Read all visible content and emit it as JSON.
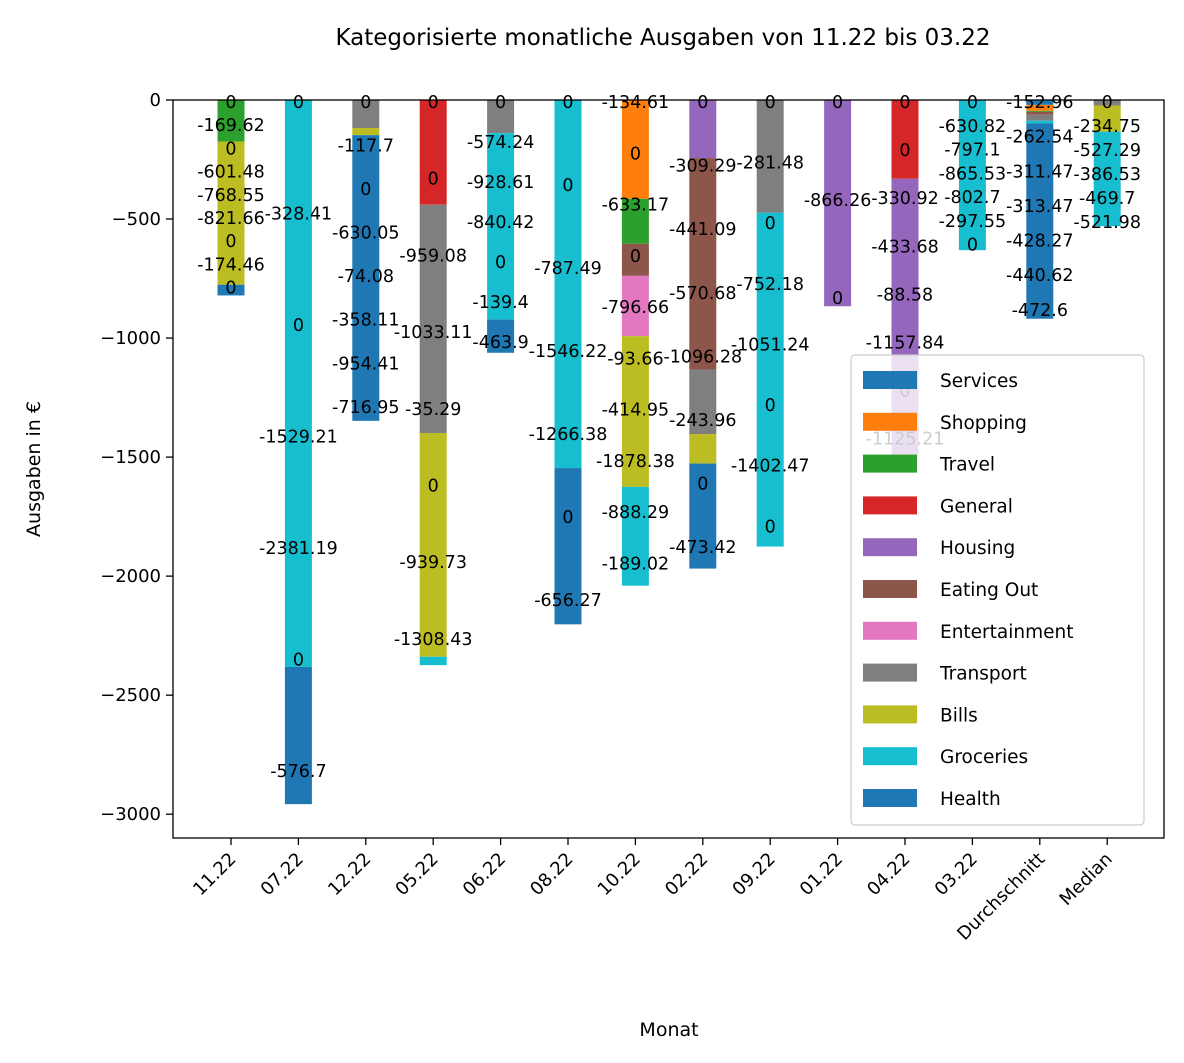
{
  "chart_data": {
    "type": "bar",
    "stacked": true,
    "title": "Kategorisierte monatliche Ausgaben von 11.22 bis 03.22",
    "xlabel": "Monat",
    "ylabel": "Ausgaben in €",
    "ylim": [
      -3100,
      0
    ],
    "yticks": [
      0,
      -500,
      -1000,
      -1500,
      -2000,
      -2500,
      -3000
    ],
    "ytick_labels": [
      "0",
      "−500",
      "−1000",
      "−1500",
      "−2000",
      "−2500",
      "−3000"
    ],
    "grid": false,
    "legend_position": "lower right",
    "categories": [
      "11.22",
      "07.22",
      "12.22",
      "05.22",
      "06.22",
      "08.22",
      "10.22",
      "02.22",
      "09.22",
      "01.22",
      "04.22",
      "03.22",
      "Durchschnitt",
      "Median"
    ],
    "series": [
      {
        "name": "Services",
        "color": "#1f77b4",
        "values": [
          0,
          0,
          0,
          0,
          0,
          0,
          0,
          0,
          0,
          0,
          0,
          0,
          -20.5,
          0
        ]
      },
      {
        "name": "Shopping",
        "color": "#ff7f0e",
        "values": [
          0,
          0,
          0,
          0,
          0,
          0,
          -414.95,
          0,
          0,
          0,
          0,
          0,
          -25.3,
          0
        ]
      },
      {
        "name": "Travel",
        "color": "#2ca02c",
        "values": [
          -174.46,
          0,
          0,
          0,
          0,
          0,
          -189.02,
          0,
          0,
          0,
          0,
          0,
          -4.0,
          0
        ]
      },
      {
        "name": "General",
        "color": "#d62728",
        "values": [
          0,
          0,
          0,
          -439.82,
          0,
          0,
          0,
          0,
          0,
          0,
          -330.92,
          0,
          0,
          0
        ]
      },
      {
        "name": "Housing",
        "color": "#9467bd",
        "values": [
          0,
          0,
          0,
          0,
          0,
          0,
          0,
          -243.96,
          0,
          -866.26,
          -1157.84,
          0,
          0,
          0
        ]
      },
      {
        "name": "Eating Out",
        "color": "#8c564b",
        "values": [
          0,
          0,
          0,
          0,
          0,
          0,
          -134.61,
          -888.29,
          0,
          0,
          0,
          0,
          -12.0,
          0
        ]
      },
      {
        "name": "Entertainment",
        "color": "#e377c2",
        "values": [
          0,
          0,
          0,
          0,
          0,
          0,
          -253.38,
          0,
          0,
          0,
          0,
          0,
          0,
          0
        ]
      },
      {
        "name": "Transport",
        "color": "#7f7f7f",
        "values": [
          0,
          0,
          -117.7,
          -959.08,
          -139.4,
          0,
          0,
          -270.88,
          -473.42,
          0,
          0,
          0,
          -25.0,
          -23.0
        ]
      },
      {
        "name": "Bills",
        "color": "#bcbd22",
        "values": [
          -601.48,
          0,
          -30.0,
          -939.73,
          0,
          0,
          -633.17,
          -124.0,
          0,
          0,
          0,
          0,
          0,
          -110.0
        ]
      },
      {
        "name": "Groceries",
        "color": "#17becf",
        "values": [
          0,
          -2381.19,
          0,
          -35.29,
          -783.0,
          -1546.22,
          -414.95,
          0,
          -1402.47,
          0,
          0,
          -630.82,
          -12.0,
          -397.0
        ]
      },
      {
        "name": "Health",
        "color": "#1f77b4",
        "values": [
          -45.0,
          -576.7,
          -1200.0,
          0,
          -139.4,
          -656.27,
          0,
          -441.09,
          0,
          0,
          0,
          0,
          -820.0,
          0
        ]
      }
    ],
    "annotations": {
      "11.22": [
        "0",
        "-169.62",
        "0",
        "-601.48",
        "-768.55",
        "-821.66",
        "0",
        "-174.46",
        "0"
      ],
      "07.22": [
        "0",
        "-328.41",
        "0",
        "-1529.21",
        "-2381.19",
        "0",
        "-576.7"
      ],
      "12.22": [
        "0",
        "-117.7",
        "0",
        "-630.05",
        "-74.08",
        "-358.11",
        "-954.41",
        "-716.95"
      ],
      "05.22": [
        "0",
        "0",
        "-959.08",
        "-1033.11",
        "-35.29",
        "0",
        "-939.73",
        "-1308.43"
      ],
      "06.22": [
        "0",
        "-574.24",
        "-928.61",
        "-840.42",
        "0",
        "-139.4",
        "-463.9"
      ],
      "08.22": [
        "0",
        "0",
        "-787.49",
        "-1546.22",
        "-1266.38",
        "0",
        "-656.27"
      ],
      "10.22": [
        "-134.61",
        "0",
        "-633.17",
        "0",
        "-796.66",
        "-93.66",
        "-414.95",
        "-1878.38",
        "-888.29",
        "-189.02"
      ],
      "02.22": [
        "0",
        "-309.29",
        "-441.09",
        "-570.68",
        "-1096.28",
        "-243.96",
        "0",
        "-473.42"
      ],
      "09.22": [
        "0",
        "-281.48",
        "0",
        "-752.18",
        "-1051.24",
        "0",
        "-1402.47",
        "0"
      ],
      "01.22": [
        "0",
        "-866.26",
        "0"
      ],
      "04.22": [
        "0",
        "0",
        "-330.92",
        "-433.68",
        "-88.58",
        "-1157.84",
        "0",
        "-1125.21"
      ],
      "03.22": [
        "0",
        "-630.82",
        "-797.1",
        "-865.53",
        "-802.7",
        "-297.55",
        "0"
      ],
      "Durchschnitt": [
        "-152.96",
        "-262.54",
        "-311.47",
        "-313.47",
        "-428.27",
        "-440.62",
        "-472.6"
      ],
      "Median": [
        "0",
        "-234.75",
        "-527.29",
        "-386.53",
        "-469.7",
        "-521.98"
      ]
    }
  }
}
